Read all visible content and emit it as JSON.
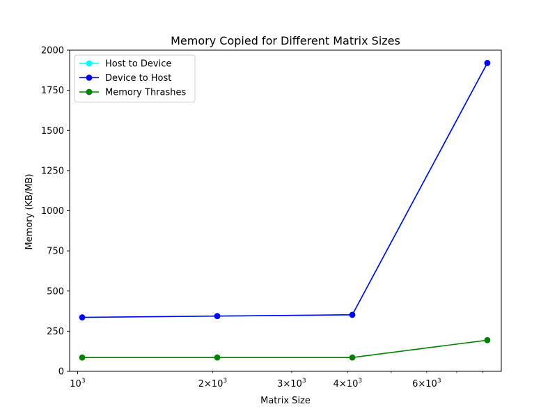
{
  "chart_data": {
    "type": "line",
    "title": "Memory Copied for Different Matrix Sizes",
    "xlabel": "Matrix Size",
    "ylabel": "Memory (KB/MB)",
    "xscale": "log",
    "x": [
      1024,
      2048,
      4096,
      8192
    ],
    "xlim": [
      960,
      8800
    ],
    "ylim": [
      0,
      2000
    ],
    "yticks": [
      0,
      250,
      500,
      750,
      1000,
      1250,
      1500,
      1750,
      2000
    ],
    "xticks_major": [
      {
        "value": 1000,
        "base": "10",
        "exp": "3"
      }
    ],
    "xticks_labeled_minor": [
      {
        "value": 2000,
        "coef": "2",
        "base": "10",
        "exp": "3"
      },
      {
        "value": 3000,
        "coef": "3",
        "base": "10",
        "exp": "3"
      },
      {
        "value": 4000,
        "coef": "4",
        "base": "10",
        "exp": "3"
      },
      {
        "value": 6000,
        "coef": "6",
        "base": "10",
        "exp": "3"
      }
    ],
    "xticks_unlabeled_minor": [
      5000,
      7000,
      8000
    ],
    "legend_position": "upper-left",
    "grid": false,
    "series": [
      {
        "name": "Host to Device",
        "color": "#00ffff",
        "values": [
          336,
          344,
          352,
          1920
        ]
      },
      {
        "name": "Device to Host",
        "color": "#0000ff",
        "values": [
          336,
          344,
          352,
          1920
        ]
      },
      {
        "name": "Memory Thrashes",
        "color": "#008000",
        "values": [
          86,
          86,
          86,
          194
        ]
      }
    ]
  }
}
